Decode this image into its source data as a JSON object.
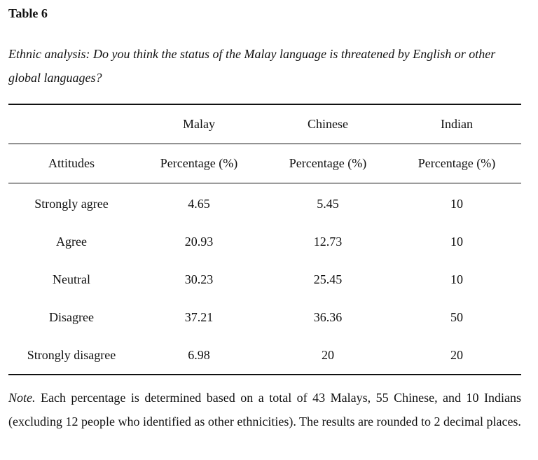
{
  "table_label": "Table 6",
  "table_title": "Ethnic analysis: Do you think the status of the Malay language is threatened by English or other global languages?",
  "columns": {
    "groups": [
      "",
      "Malay",
      "Chinese",
      "Indian"
    ],
    "sub": [
      "Attitudes",
      "Percentage (%)",
      "Percentage (%)",
      "Percentage (%)"
    ]
  },
  "rows": [
    {
      "attitude": "Strongly agree",
      "malay": "4.65",
      "chinese": "5.45",
      "indian": "10"
    },
    {
      "attitude": "Agree",
      "malay": "20.93",
      "chinese": "12.73",
      "indian": "10"
    },
    {
      "attitude": "Neutral",
      "malay": "30.23",
      "chinese": "25.45",
      "indian": "10"
    },
    {
      "attitude": "Disagree",
      "malay": "37.21",
      "chinese": "36.36",
      "indian": "50"
    },
    {
      "attitude": "Strongly disagree",
      "malay": "6.98",
      "chinese": "20",
      "indian": "20"
    }
  ],
  "note": {
    "label": "Note.",
    "text": " Each percentage is determined based on a total of 43 Malays, 55 Chinese, and 10 Indians (excluding 12 people who identified as other ethnicities). The results are rounded to 2 decimal places."
  }
}
